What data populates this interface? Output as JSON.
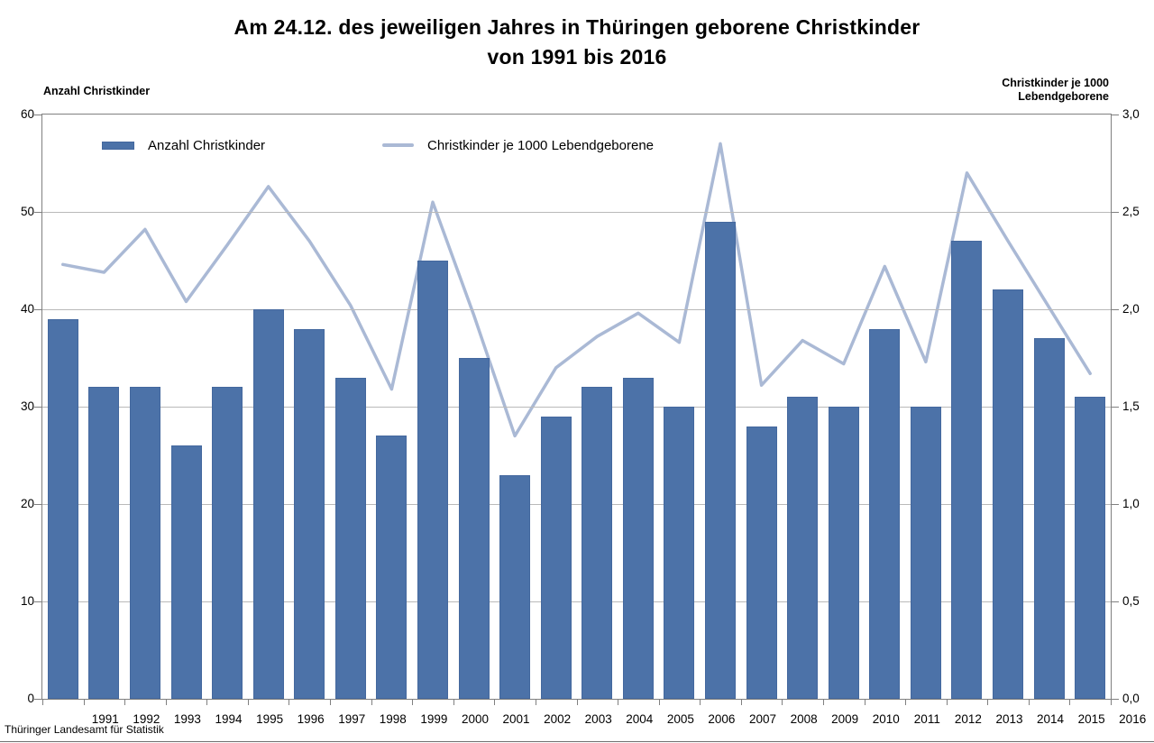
{
  "title": {
    "line1": "Am 24.12. des jeweiligen Jahres in Thüringen geborene Christkinder",
    "line2": "von 1991 bis 2016"
  },
  "axes": {
    "left_title": "Anzahl Christkinder",
    "right_title_line1": "Christkinder je 1000",
    "right_title_line2": "Lebendgeborene",
    "left_tick_labels": [
      "60",
      "50",
      "40",
      "30",
      "20",
      "10",
      "0"
    ],
    "right_tick_labels": [
      "3,0",
      "2,5",
      "2,0",
      "1,5",
      "1,0",
      "0,5",
      "0,0"
    ]
  },
  "legend": {
    "bar_label": "Anzahl Christkinder",
    "line_label": "Christkinder je 1000 Lebendgeborene"
  },
  "footer": {
    "source": "Thüringer Landesamt für Statistik"
  },
  "colors": {
    "bar": "#4C72A8",
    "bar_border": "#44689E",
    "line": "#AAB9D5",
    "grid": "#b9b9b9",
    "axis_frame": "#808080"
  },
  "chart_data": {
    "type": "bar",
    "title": "Am 24.12. des jeweiligen Jahres in Thüringen geborene Christkinder von 1991 bis 2016",
    "categories": [
      "1991",
      "1992",
      "1993",
      "1994",
      "1995",
      "1996",
      "1997",
      "1998",
      "1999",
      "2000",
      "2001",
      "2002",
      "2003",
      "2004",
      "2005",
      "2006",
      "2007",
      "2008",
      "2009",
      "2010",
      "2011",
      "2012",
      "2013",
      "2014",
      "2015",
      "2016"
    ],
    "series": [
      {
        "name": "Anzahl Christkinder",
        "type": "bar",
        "axis": "left",
        "values": [
          39,
          32,
          32,
          26,
          32,
          40,
          38,
          33,
          27,
          45,
          35,
          23,
          29,
          32,
          33,
          30,
          49,
          28,
          31,
          30,
          38,
          30,
          47,
          42,
          37,
          31
        ]
      },
      {
        "name": "Christkinder je 1000 Lebendgeborene",
        "type": "line",
        "axis": "right",
        "values": [
          2.23,
          2.19,
          2.41,
          2.04,
          2.33,
          2.63,
          2.35,
          2.02,
          1.59,
          2.55,
          1.97,
          1.35,
          1.7,
          1.86,
          1.98,
          1.83,
          2.85,
          1.61,
          1.84,
          1.72,
          2.22,
          1.73,
          2.7,
          2.35,
          2.01,
          1.67
        ]
      }
    ],
    "left_axis": {
      "label": "Anzahl Christkinder",
      "range": [
        0,
        60
      ],
      "tick_step": 10
    },
    "right_axis": {
      "label": "Christkinder je 1000 Lebendgeborene",
      "range": [
        0.0,
        3.0
      ],
      "tick_step": 0.5
    },
    "grid": true,
    "legend_position": "top-inside",
    "source": "Thüringer Landesamt für Statistik"
  }
}
